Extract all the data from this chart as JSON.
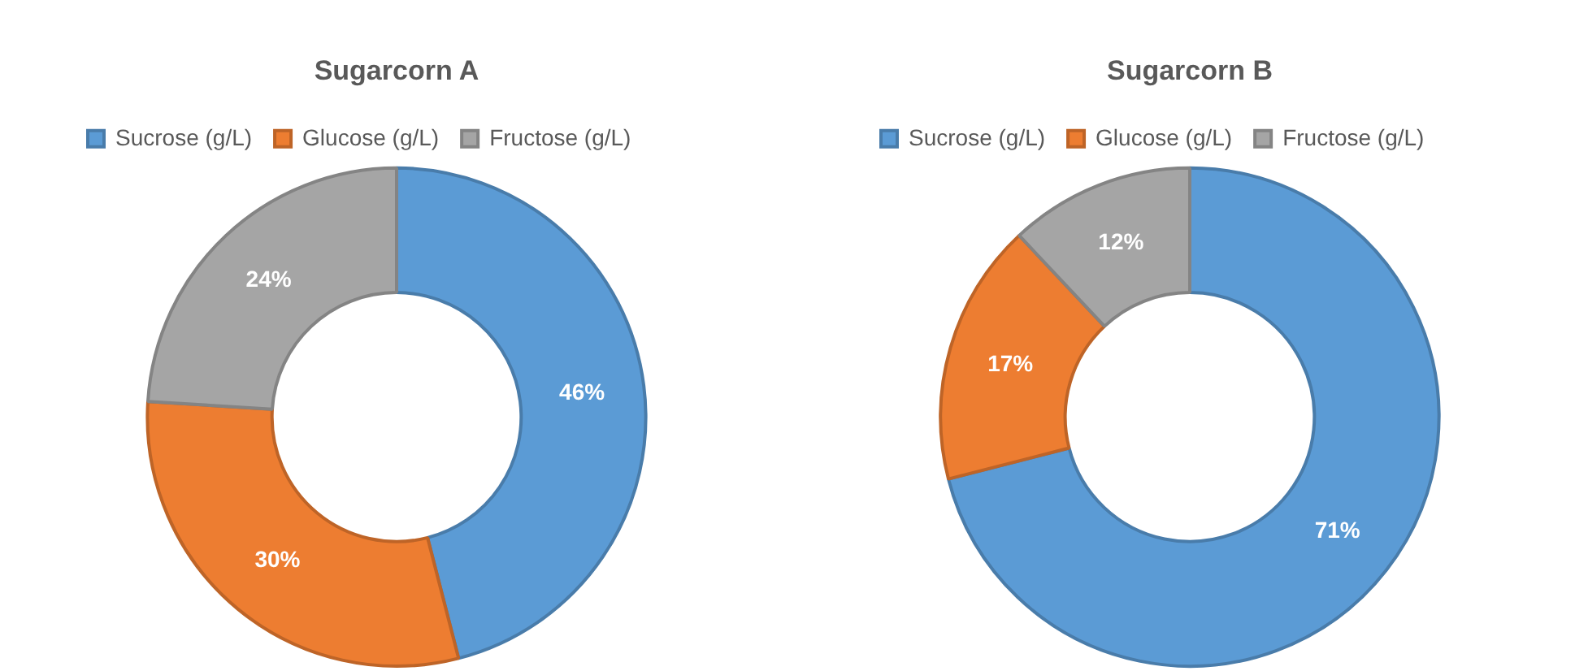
{
  "chart_data": [
    {
      "type": "donut",
      "title": "Sugarcorn A",
      "categories": [
        "Sucrose (g/L)",
        "Glucose (g/L)",
        "Fructose (g/L)"
      ],
      "values": [
        46,
        30,
        24
      ],
      "colors": [
        "#5b9bd5",
        "#ed7d31",
        "#a5a5a5"
      ],
      "value_labels": [
        "46%",
        "30%",
        "24%"
      ],
      "legend": "top"
    },
    {
      "type": "donut",
      "title": "Sugarcorn B",
      "categories": [
        "Sucrose (g/L)",
        "Glucose (g/L)",
        "Fructose (g/L)"
      ],
      "values": [
        71,
        17,
        12
      ],
      "colors": [
        "#5b9bd5",
        "#ed7d31",
        "#a5a5a5"
      ],
      "value_labels": [
        "71%",
        "17%",
        "12%"
      ],
      "legend": "top"
    }
  ]
}
